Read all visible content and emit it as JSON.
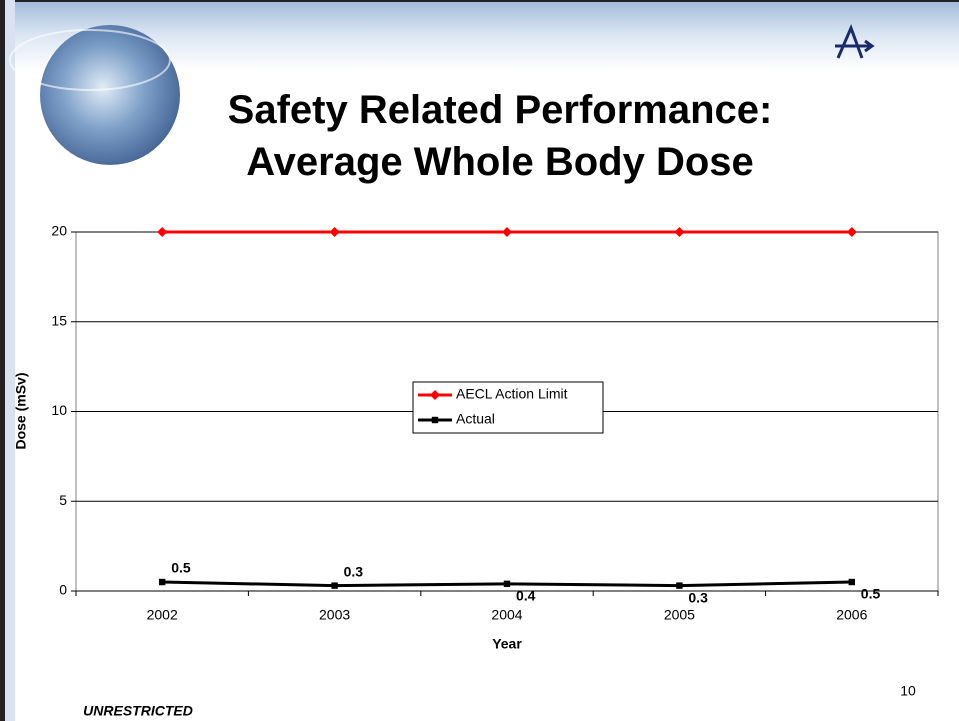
{
  "chart_data": {
    "type": "line",
    "title": "Safety Related Performance: Average Whole Body Dose",
    "x_label": "Year",
    "y_label": "Dose (mSv)",
    "categories": [
      "2002",
      "2003",
      "2004",
      "2005",
      "2006"
    ],
    "series": [
      {
        "name": "AECL Action Limit",
        "color": "#ff0000",
        "marker": "diamond",
        "values": [
          20,
          20,
          20,
          20,
          20
        ]
      },
      {
        "name": "Actual",
        "color": "#000000",
        "marker": "square",
        "values": [
          0.5,
          0.3,
          0.4,
          0.3,
          0.5
        ],
        "data_labels": true
      }
    ],
    "ylim": [
      0,
      20
    ],
    "yticks": [
      0,
      5,
      10,
      15,
      20
    ],
    "grid": true,
    "legend": "center"
  },
  "footer": {
    "classification": "UNRESTRICTED",
    "page_number": "10"
  }
}
